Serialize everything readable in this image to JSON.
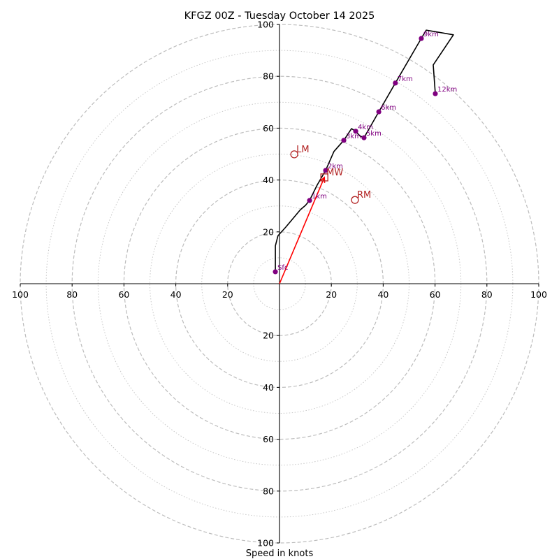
{
  "chart_data": {
    "type": "line",
    "subtype": "hodograph",
    "title": "KFGZ 00Z - Tuesday October 14 2025",
    "xlabel": "Speed in knots",
    "ylabel": "",
    "xlim": [
      -100,
      100
    ],
    "ylim": [
      -100,
      100
    ],
    "rings_dashed": [
      20,
      40,
      60,
      80,
      100
    ],
    "rings_dotted": [
      10,
      30,
      50,
      70,
      90
    ],
    "x_ticks": [
      {
        "value": -100,
        "label": "100"
      },
      {
        "value": -80,
        "label": "80"
      },
      {
        "value": -60,
        "label": "60"
      },
      {
        "value": -40,
        "label": "40"
      },
      {
        "value": -20,
        "label": "20"
      },
      {
        "value": 20,
        "label": "20"
      },
      {
        "value": 40,
        "label": "40"
      },
      {
        "value": 60,
        "label": "60"
      },
      {
        "value": 80,
        "label": "80"
      },
      {
        "value": 100,
        "label": "100"
      }
    ],
    "y_ticks": [
      {
        "value": 100,
        "label": "100"
      },
      {
        "value": 80,
        "label": "80"
      },
      {
        "value": 60,
        "label": "60"
      },
      {
        "value": 40,
        "label": "40"
      },
      {
        "value": 20,
        "label": "20"
      },
      {
        "value": -20,
        "label": "20"
      },
      {
        "value": -40,
        "label": "40"
      },
      {
        "value": -60,
        "label": "60"
      },
      {
        "value": -80,
        "label": "80"
      },
      {
        "value": -100,
        "label": "100"
      }
    ],
    "hodograph_trace": {
      "color": "#000000",
      "points": [
        [
          -1.6,
          4.6
        ],
        [
          -1.6,
          14.6
        ],
        [
          -0.6,
          18.5
        ],
        [
          2.4,
          21.8
        ],
        [
          8.1,
          28.6
        ],
        [
          10.0,
          30.2
        ],
        [
          11.6,
          32.1
        ],
        [
          14.5,
          38.0
        ],
        [
          17.8,
          43.7
        ],
        [
          21.0,
          51.0
        ],
        [
          24.8,
          55.3
        ],
        [
          27.8,
          59.8
        ],
        [
          29.4,
          58.8
        ],
        [
          31.0,
          57.0
        ],
        [
          32.6,
          56.3
        ],
        [
          38.3,
          66.3
        ],
        [
          44.7,
          77.4
        ],
        [
          54.7,
          94.6
        ],
        [
          56.6,
          97.8
        ],
        [
          67.1,
          96.0
        ],
        [
          59.3,
          84.4
        ],
        [
          60.1,
          73.3
        ]
      ]
    },
    "height_markers": {
      "color": "#800080",
      "points": [
        {
          "label": "Sfc",
          "u": -1.6,
          "v": 4.6
        },
        {
          "label": "1km",
          "u": 11.6,
          "v": 32.1
        },
        {
          "label": "2km",
          "u": 17.8,
          "v": 43.7
        },
        {
          "label": "3km",
          "u": 24.8,
          "v": 55.3
        },
        {
          "label": "4km",
          "u": 29.4,
          "v": 58.8
        },
        {
          "label": "5km",
          "u": 32.6,
          "v": 56.3
        },
        {
          "label": "6km",
          "u": 38.3,
          "v": 66.3
        },
        {
          "label": "7km",
          "u": 44.7,
          "v": 77.4
        },
        {
          "label": "9km",
          "u": 54.7,
          "v": 94.6
        },
        {
          "label": "12km",
          "u": 60.1,
          "v": 73.3
        }
      ]
    },
    "storm_motion": {
      "color": "#b22222",
      "LM": {
        "label": "LM",
        "u": 5.7,
        "v": 49.9,
        "marker": "circle"
      },
      "MW": {
        "label": "MW",
        "u": 17.3,
        "v": 41.0,
        "marker": "square"
      },
      "RM": {
        "label": "RM",
        "u": 29.1,
        "v": 32.3,
        "marker": "circle"
      }
    },
    "mean_wind_vector": {
      "color": "#ff0000",
      "from": [
        0,
        0
      ],
      "to": [
        17.3,
        41.0
      ]
    },
    "grid": true
  }
}
